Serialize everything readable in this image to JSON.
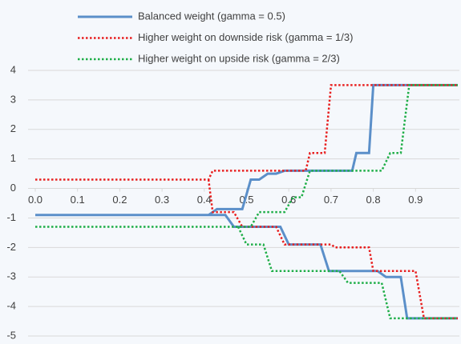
{
  "chart_data": {
    "type": "line",
    "series": [
      {
        "name": "Balanced weight (gamma = 0.5)",
        "color": "#5b8fc9",
        "line_style": "solid",
        "x": [
          0,
          0.41,
          0.43,
          0.49,
          0.51,
          0.53,
          0.55,
          0.57,
          0.59,
          0.75,
          0.76,
          0.79,
          0.8,
          1.0,
          null,
          0,
          0.45,
          0.47,
          0.58,
          0.6,
          0.675,
          0.695,
          0.81,
          0.83,
          0.865,
          0.88,
          1.0
        ],
        "values": [
          -0.9,
          -0.9,
          -0.7,
          -0.7,
          0.3,
          0.3,
          0.5,
          0.5,
          0.6,
          0.6,
          1.2,
          1.2,
          3.5,
          3.5,
          null,
          -0.9,
          -0.9,
          -1.3,
          -1.3,
          -1.9,
          -1.9,
          -2.8,
          -2.8,
          -3.0,
          -3.0,
          -4.4,
          -4.4
        ]
      },
      {
        "name": "Higher weight on downside risk (gamma = 1/3)",
        "color": "#e82020",
        "line_style": "dotted",
        "x": [
          0,
          0.41,
          0.42,
          0.64,
          0.65,
          0.685,
          0.7,
          1.0,
          null,
          0.41,
          0.42,
          0.47,
          0.49,
          0.57,
          0.59,
          0.7,
          0.71,
          0.79,
          0.8,
          0.9,
          0.92,
          1.0
        ],
        "values": [
          0.3,
          0.3,
          0.6,
          0.6,
          1.2,
          1.2,
          3.5,
          3.5,
          null,
          0.3,
          -0.8,
          -0.8,
          -1.3,
          -1.3,
          -1.9,
          -1.9,
          -2.0,
          -2.0,
          -2.8,
          -2.8,
          -4.4,
          -4.4
        ]
      },
      {
        "name": "Higher weight on upside risk (gamma = 2/3)",
        "color": "#1fae48",
        "line_style": "dotted",
        "x": [
          0,
          0.51,
          0.53,
          0.59,
          0.61,
          0.63,
          0.65,
          0.82,
          0.84,
          0.865,
          0.885,
          1.0,
          null,
          0.48,
          0.5,
          0.54,
          0.56,
          0.72,
          0.74,
          0.82,
          0.84,
          1.0
        ],
        "values": [
          -1.3,
          -1.3,
          -0.8,
          -0.8,
          -0.3,
          -0.3,
          0.6,
          0.6,
          1.2,
          1.2,
          3.5,
          3.5,
          null,
          -1.3,
          -1.9,
          -1.9,
          -2.8,
          -2.8,
          -3.2,
          -3.2,
          -4.4,
          -4.4
        ]
      }
    ],
    "xlim": [
      0,
      1
    ],
    "xticks": [
      {
        "value": 0,
        "label": "0.0"
      },
      0.1,
      0.2,
      0.3,
      0.4,
      0.5,
      0.6,
      0.7,
      0.8,
      0.9
    ],
    "ylim": [
      -5,
      4
    ],
    "yticks": [
      -5,
      -4,
      -3,
      -2,
      -1,
      0,
      1,
      2,
      3,
      4
    ],
    "grid": true,
    "legend": "top"
  }
}
